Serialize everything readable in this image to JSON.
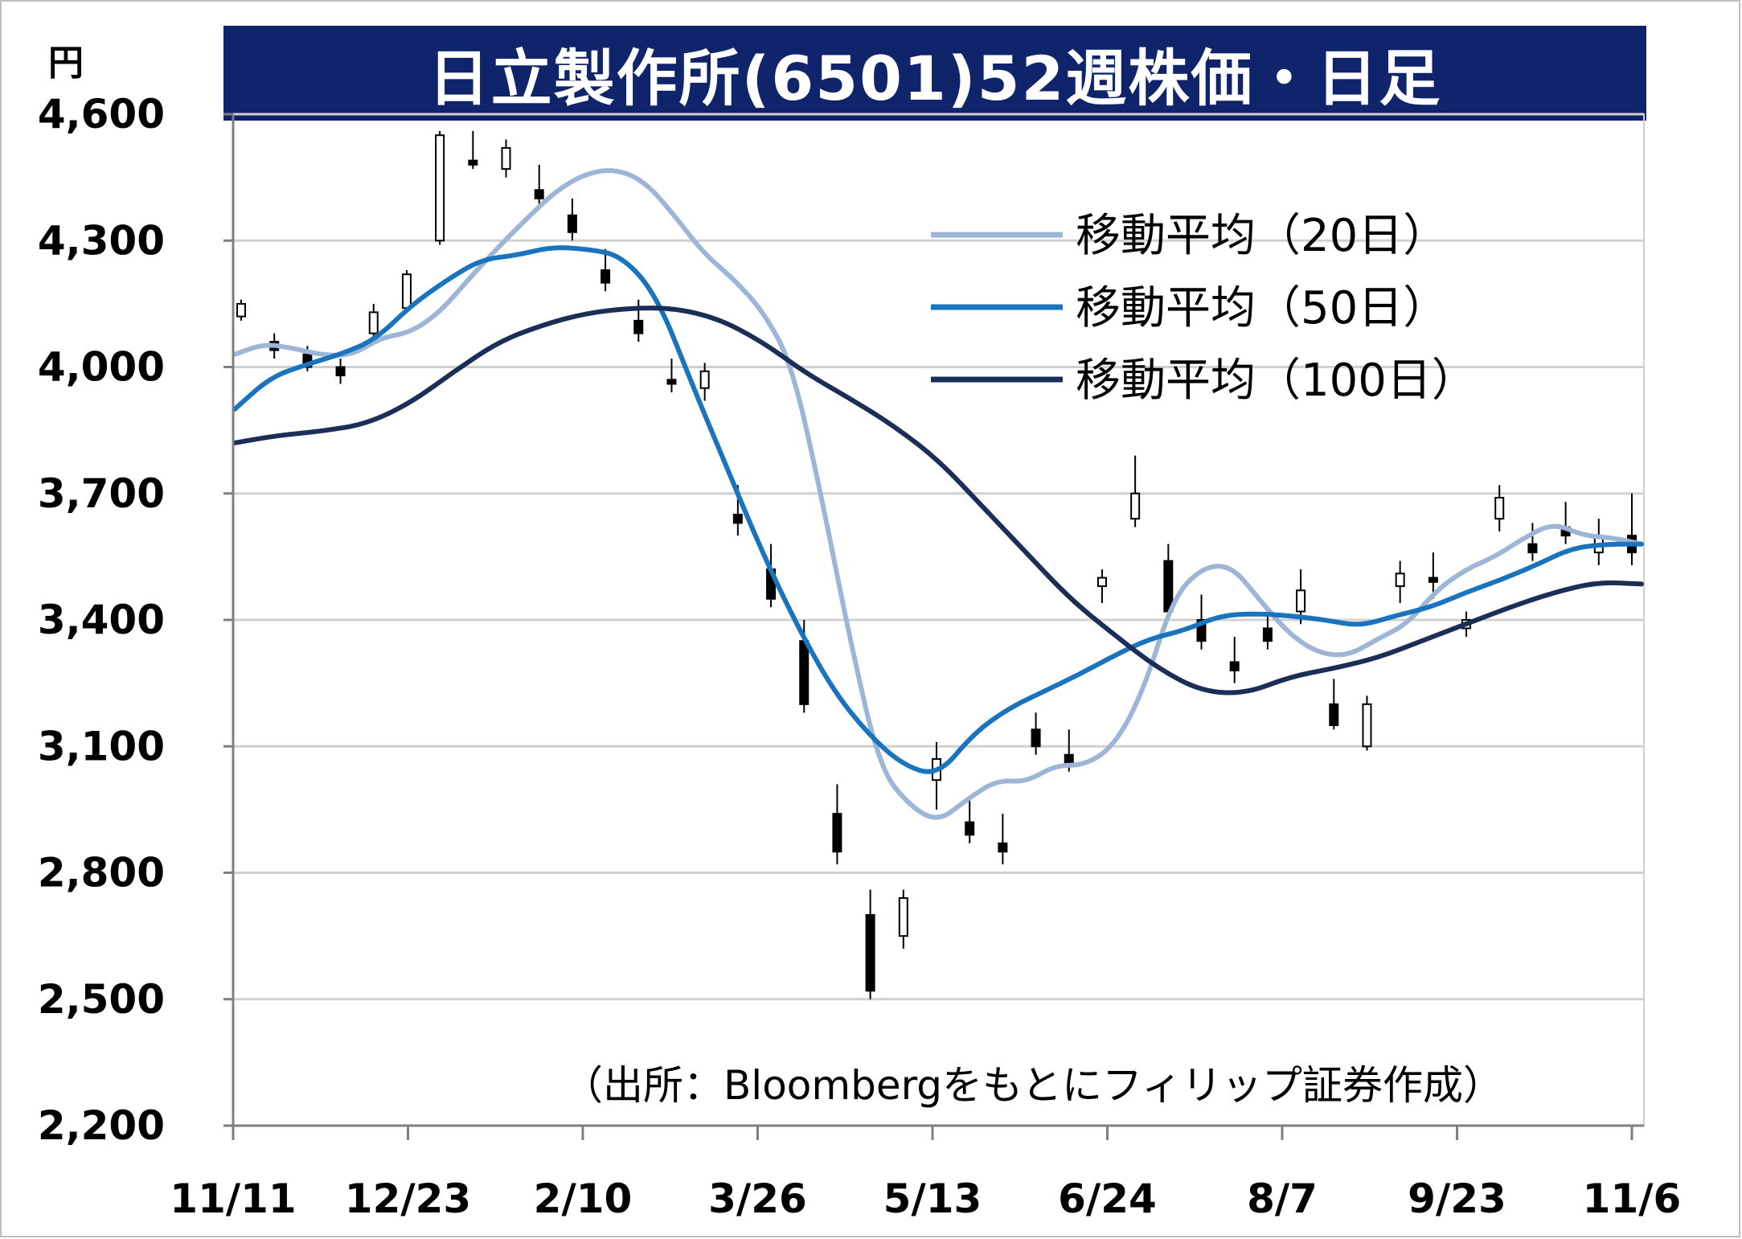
{
  "chart_data": {
    "type": "candlestick",
    "title": "日立製作所(6501)52週株価・日足",
    "ylabel": "円",
    "ylim": [
      2200,
      4600
    ],
    "yticks": [
      "4,600",
      "4,300",
      "4,000",
      "3,700",
      "3,400",
      "3,100",
      "2,800",
      "2,500",
      "2,200"
    ],
    "ytick_values": [
      4600,
      4300,
      4000,
      3700,
      3400,
      3100,
      2800,
      2500,
      2200
    ],
    "xticks": [
      "11/11",
      "12/23",
      "2/10",
      "3/26",
      "5/13",
      "6/24",
      "8/7",
      "9/23",
      "11/6"
    ],
    "grid": true,
    "legend_position": "top-right",
    "source": "（出所：Bloombergをもとにフィリップ証券作成）",
    "series": [
      {
        "name": "移動平均（20日）",
        "color": "#9db6d8",
        "values": [
          4030,
          4055,
          4045,
          4028,
          4028,
          4070,
          4082,
          4130,
          4210,
          4285,
          4355,
          4420,
          4460,
          4470,
          4440,
          4360,
          4270,
          4210,
          4135,
          4010,
          3700,
          3350,
          3050,
          2960,
          2920,
          2975,
          3020,
          3015,
          3055,
          3055,
          3100,
          3230,
          3450,
          3525,
          3530,
          3445,
          3365,
          3320,
          3315,
          3355,
          3390,
          3470,
          3520,
          3550,
          3595,
          3630,
          3600,
          3595,
          3580
        ]
      },
      {
        "name": "移動平均（50日）",
        "color": "#1a73bd",
        "values": [
          3900,
          3975,
          4005,
          4030,
          4065,
          4145,
          4205,
          4255,
          4265,
          4285,
          4280,
          4265,
          4170,
          3960,
          3760,
          3560,
          3385,
          3235,
          3130,
          3055,
          3030,
          3130,
          3190,
          3230,
          3270,
          3315,
          3355,
          3375,
          3410,
          3415,
          3410,
          3400,
          3385,
          3410,
          3430,
          3465,
          3495,
          3530,
          3570,
          3580,
          3580
        ]
      },
      {
        "name": "移動平均（100日）",
        "color": "#1b2e57",
        "values": [
          3820,
          3838,
          3848,
          3865,
          3915,
          3990,
          4060,
          4100,
          4128,
          4140,
          4140,
          4115,
          4060,
          3985,
          3925,
          3860,
          3780,
          3670,
          3560,
          3450,
          3365,
          3285,
          3230,
          3225,
          3265,
          3285,
          3310,
          3350,
          3390,
          3430,
          3465,
          3490,
          3485
        ]
      }
    ],
    "ohlc_sample": [
      [
        4120,
        4160,
        4110,
        4150
      ],
      [
        4060,
        4080,
        4020,
        4040
      ],
      [
        4030,
        4050,
        3990,
        4000
      ],
      [
        4000,
        4020,
        3960,
        3980
      ],
      [
        4080,
        4150,
        4060,
        4130
      ],
      [
        4140,
        4230,
        4130,
        4220
      ],
      [
        4300,
        4560,
        4290,
        4550
      ],
      [
        4490,
        4560,
        4470,
        4480
      ],
      [
        4470,
        4540,
        4450,
        4520
      ],
      [
        4420,
        4480,
        4380,
        4400
      ],
      [
        4360,
        4400,
        4300,
        4320
      ],
      [
        4230,
        4280,
        4180,
        4200
      ],
      [
        4110,
        4160,
        4060,
        4080
      ],
      [
        3970,
        4020,
        3940,
        3960
      ],
      [
        3950,
        4010,
        3920,
        3990
      ],
      [
        3650,
        3720,
        3600,
        3630
      ],
      [
        3520,
        3580,
        3430,
        3450
      ],
      [
        3350,
        3400,
        3180,
        3200
      ],
      [
        2940,
        3010,
        2820,
        2850
      ],
      [
        2700,
        2760,
        2500,
        2520
      ],
      [
        2650,
        2760,
        2620,
        2740
      ],
      [
        3020,
        3110,
        2950,
        3070
      ],
      [
        2920,
        2980,
        2870,
        2890
      ],
      [
        2870,
        2940,
        2820,
        2850
      ],
      [
        3140,
        3180,
        3080,
        3100
      ],
      [
        3080,
        3140,
        3040,
        3060
      ],
      [
        3480,
        3520,
        3440,
        3500
      ],
      [
        3640,
        3790,
        3620,
        3700
      ],
      [
        3540,
        3580,
        3400,
        3420
      ],
      [
        3400,
        3460,
        3330,
        3350
      ],
      [
        3300,
        3360,
        3250,
        3280
      ],
      [
        3380,
        3420,
        3330,
        3350
      ],
      [
        3420,
        3520,
        3390,
        3470
      ],
      [
        3200,
        3260,
        3140,
        3150
      ],
      [
        3100,
        3220,
        3090,
        3200
      ],
      [
        3480,
        3540,
        3440,
        3510
      ],
      [
        3500,
        3560,
        3450,
        3490
      ],
      [
        3380,
        3420,
        3360,
        3400
      ],
      [
        3640,
        3720,
        3610,
        3690
      ],
      [
        3580,
        3630,
        3540,
        3560
      ],
      [
        3620,
        3680,
        3580,
        3600
      ],
      [
        3560,
        3640,
        3530,
        3600
      ],
      [
        3600,
        3700,
        3530,
        3560
      ]
    ]
  }
}
